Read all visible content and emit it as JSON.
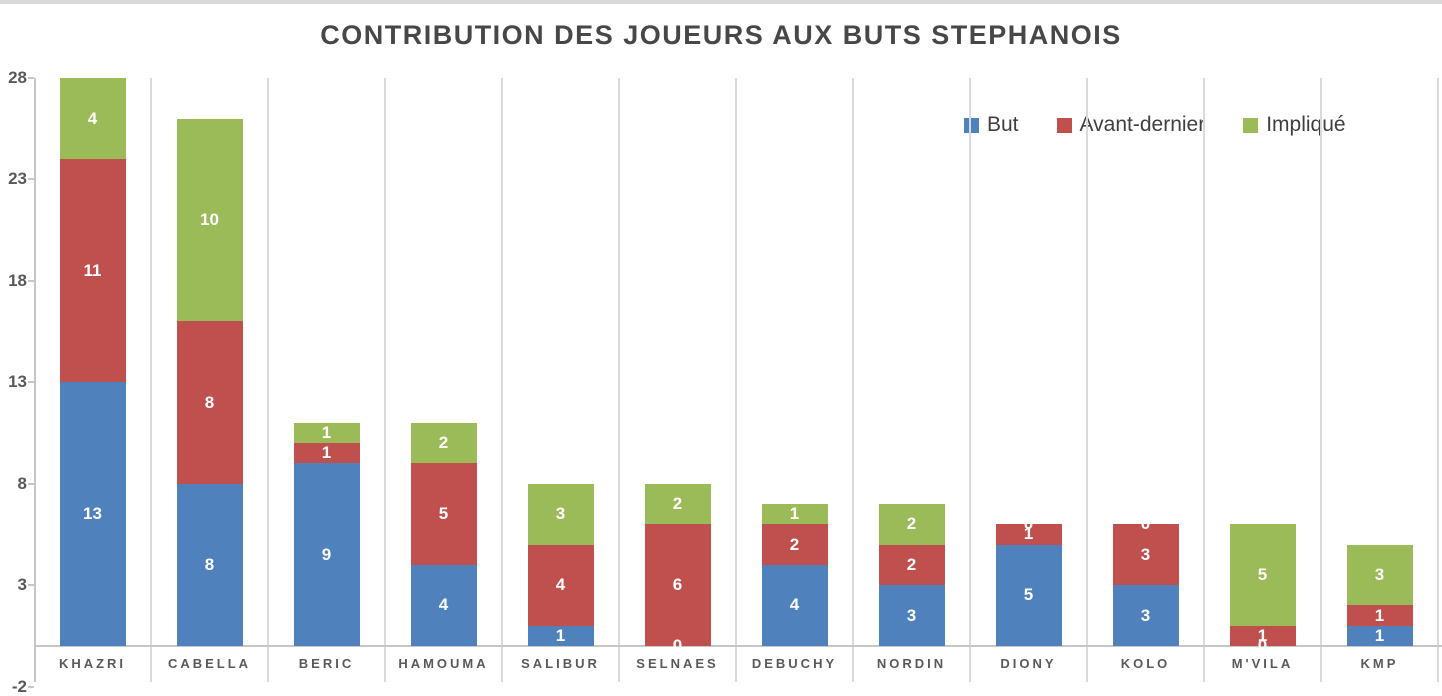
{
  "title": "CONTRIBUTION DES JOUEURS AUX BUTS STEPHANOIS",
  "legend": [
    {
      "label": "But",
      "color": "#4F81BD"
    },
    {
      "label": "Avant-dernier",
      "color": "#C0504D"
    },
    {
      "label": "Impliqué",
      "color": "#9BBB59"
    }
  ],
  "chart_data": {
    "type": "bar",
    "stacked": true,
    "title": "CONTRIBUTION DES JOUEURS AUX BUTS STEPHANOIS",
    "categories": [
      "KHAZRI",
      "CABELLA",
      "BERIC",
      "HAMOUMA",
      "SALIBUR",
      "SELNAES",
      "DEBUCHY",
      "NORDIN",
      "DIONY",
      "KOLO",
      "M'VILA",
      "KMP"
    ],
    "series": [
      {
        "name": "But",
        "color": "#4F81BD",
        "values": [
          13,
          8,
          9,
          4,
          1,
          0,
          4,
          3,
          5,
          3,
          0,
          1
        ]
      },
      {
        "name": "Avant-dernier",
        "color": "#C0504D",
        "values": [
          11,
          8,
          1,
          5,
          4,
          6,
          2,
          2,
          1,
          3,
          1,
          1
        ]
      },
      {
        "name": "Impliqué",
        "color": "#9BBB59",
        "values": [
          4,
          10,
          1,
          2,
          3,
          2,
          1,
          2,
          0,
          0,
          5,
          3
        ]
      }
    ],
    "totals": [
      28,
      26,
      11,
      11,
      8,
      8,
      7,
      7,
      6,
      6,
      6,
      5
    ],
    "xlabel": "",
    "ylabel": "",
    "y_axis": {
      "min": -2,
      "max": 28,
      "tick_interval": 5,
      "ticks": [
        28,
        23,
        18,
        13,
        8,
        3,
        -2
      ]
    },
    "gridlines": "vertical-only",
    "data_labels": "white-inside-segments",
    "legend_position": "top-right"
  }
}
